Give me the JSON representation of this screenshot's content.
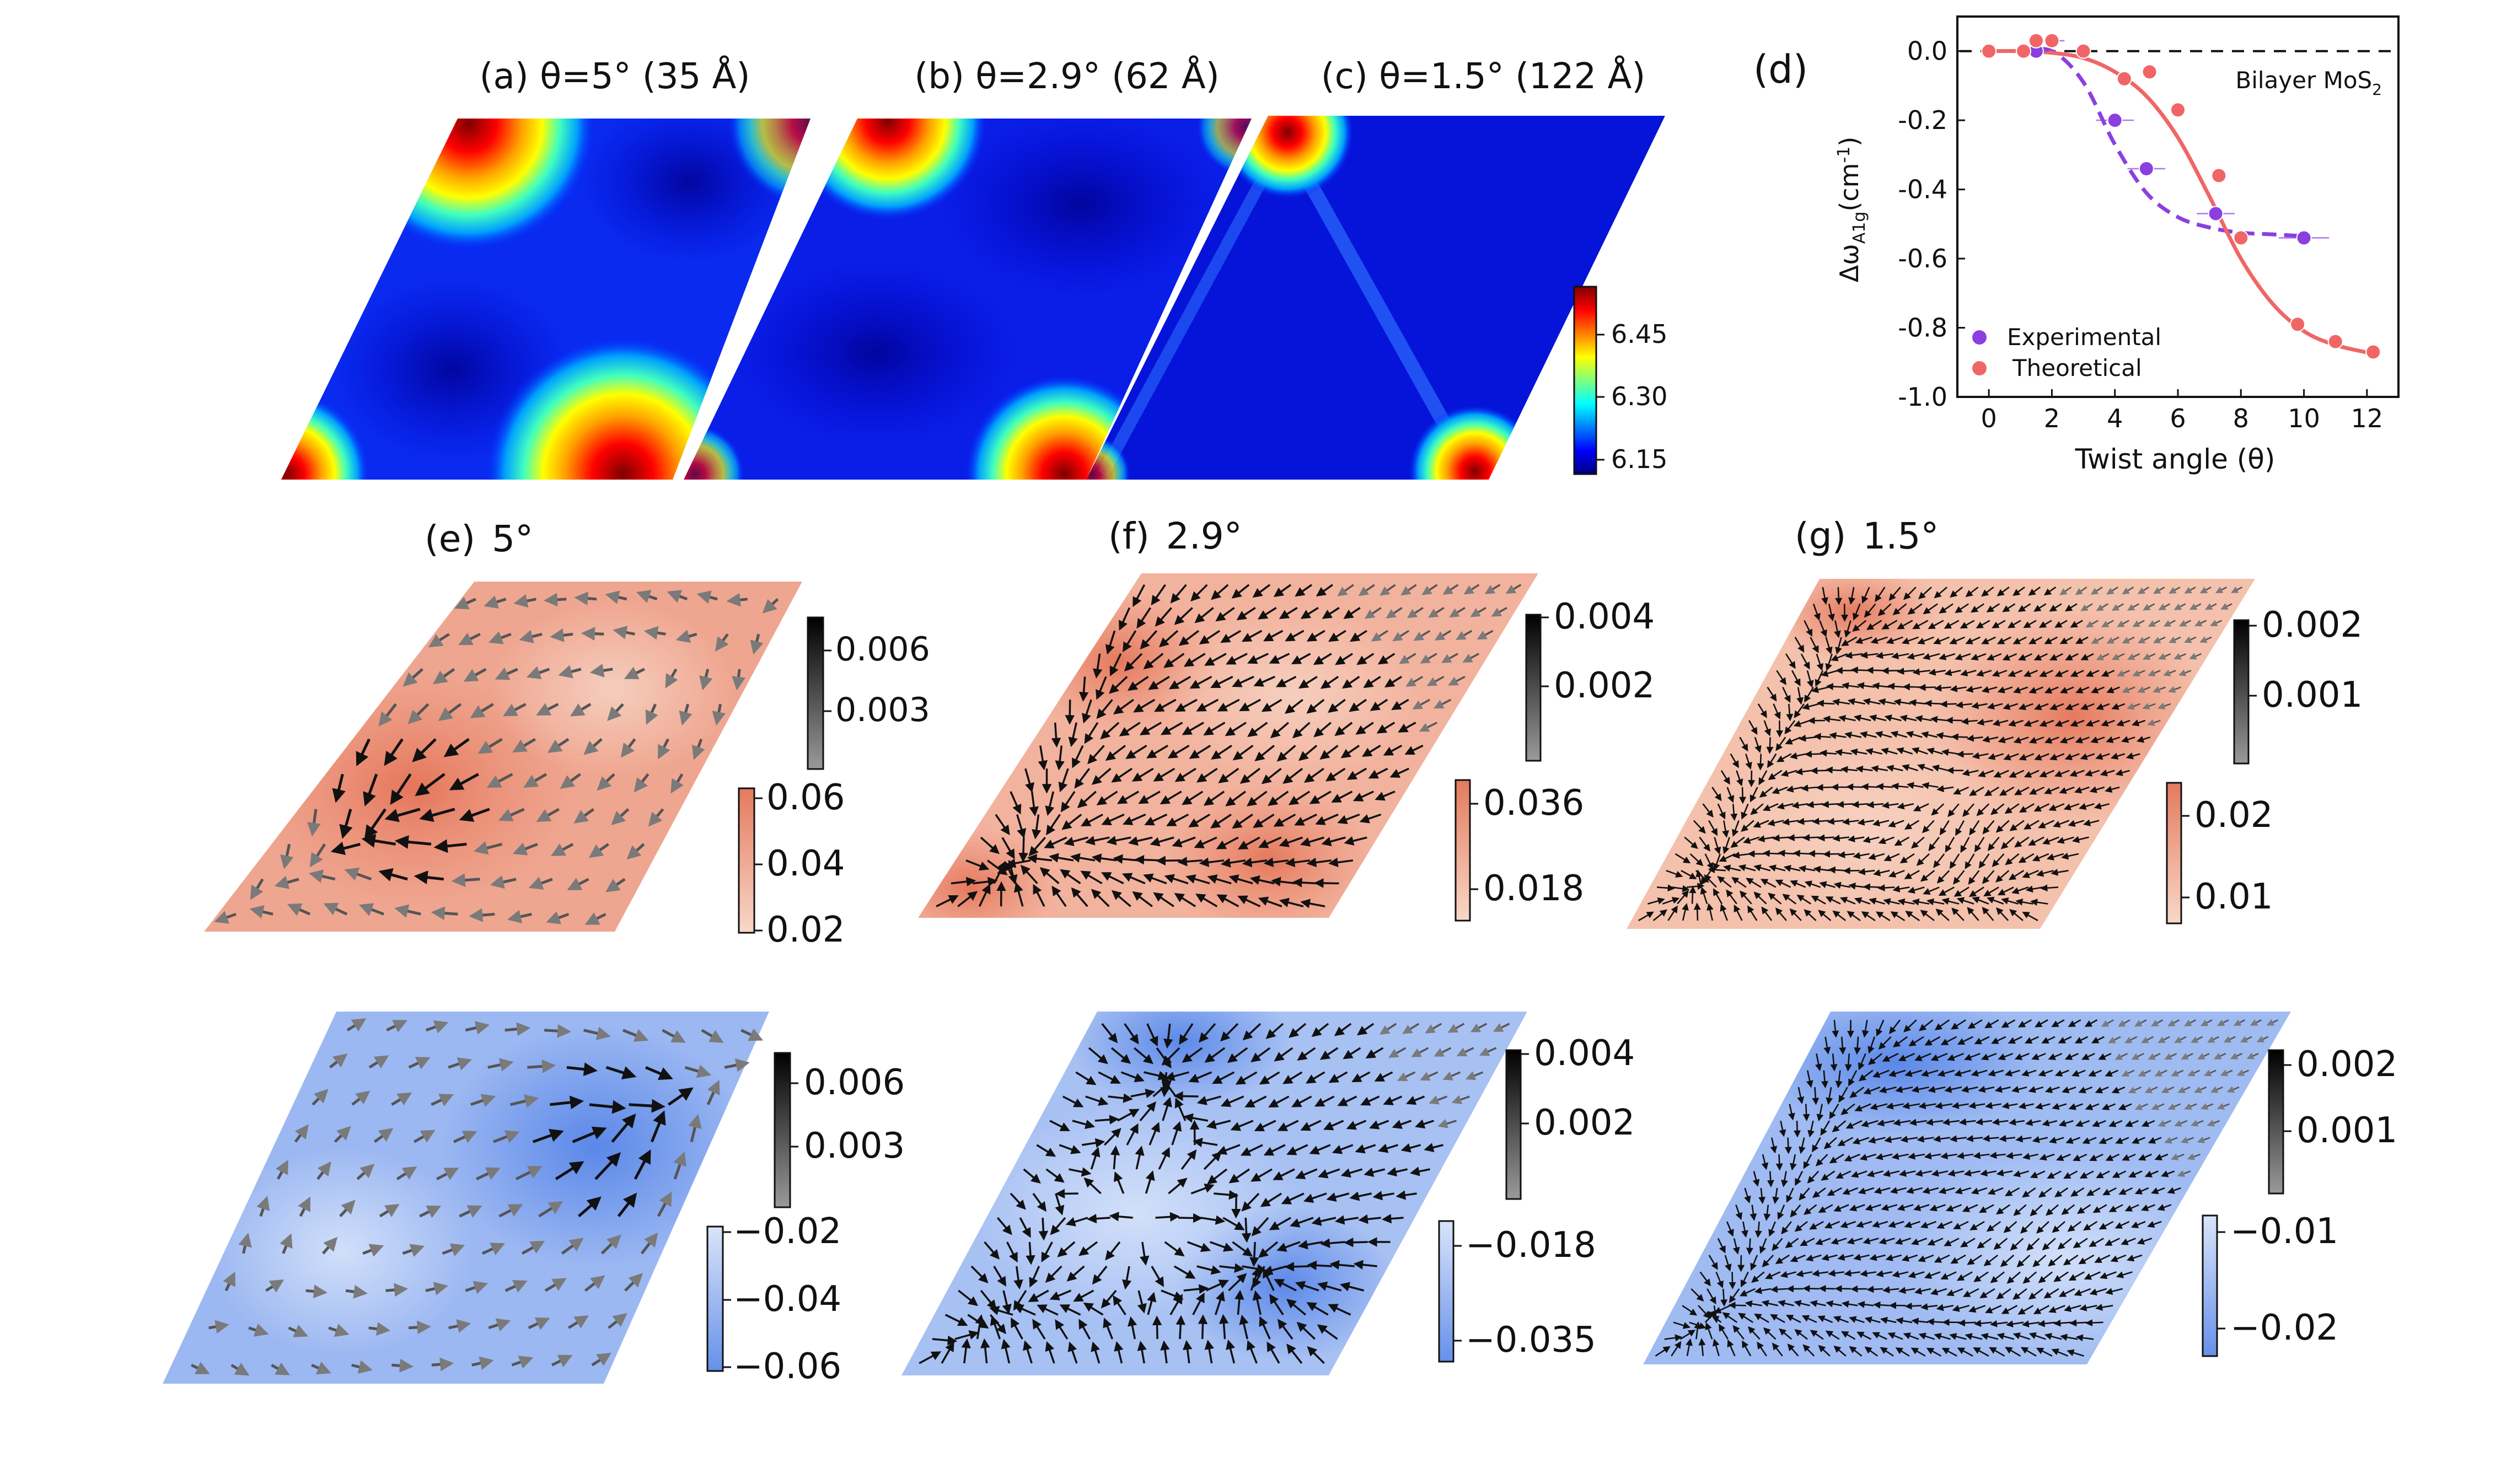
{
  "colors": {
    "jet": [
      "#00007f",
      "#0000ff",
      "#007fff",
      "#00ffff",
      "#7fff7f",
      "#ffff00",
      "#ff7f00",
      "#ff0000",
      "#7f0000"
    ],
    "exp": "#8b3fe0",
    "theo": "#f06666",
    "peach_dark": "#e9836a",
    "peach_light": "#f7c9b7",
    "blue_dark": "#6b95ec",
    "blue_light": "#c8d9f7",
    "arrow_dark": "#111111",
    "arrow_light": "#8c8c8c"
  },
  "maps": [
    {
      "label": "(a) θ=5° (35 Å)"
    },
    {
      "label": "(b) θ=2.9° (62 Å)"
    },
    {
      "label": "(c) θ=1.5° (122 Å)"
    }
  ],
  "map_colorbar": {
    "ticks": [
      "6.45",
      "6.30",
      "6.15"
    ]
  },
  "chart_data": {
    "type": "scatter",
    "panel_label": "(d)",
    "title": "",
    "xlabel": "Twist angle (θ)",
    "ylabel_main": "Δω",
    "ylabel_sub": "A1g",
    "ylabel_unit_open": "(cm",
    "ylabel_unit_sup": "-1",
    "ylabel_unit_close": ")",
    "xlim": [
      -1,
      13
    ],
    "ylim": [
      -1.0,
      0.1
    ],
    "xticks": [
      0,
      2,
      4,
      6,
      8,
      10,
      12
    ],
    "xtick_labels": [
      "0",
      "2",
      "4",
      "6",
      "8",
      "10",
      "12"
    ],
    "yticks": [
      0.0,
      -0.2,
      -0.4,
      -0.6,
      -0.8,
      -1.0
    ],
    "ytick_labels": [
      "0.0",
      "-0.2",
      "-0.4",
      "-0.6",
      "-0.8",
      "-1.0"
    ],
    "reference_line": {
      "y": 0.0,
      "label_main": "Bilayer MoS",
      "label_sub": "2"
    },
    "legend": [
      "Experimental",
      "Theoretical"
    ],
    "series": [
      {
        "name": "Experimental",
        "x": [
          1.5,
          2.0,
          4.0,
          5.0,
          7.2,
          10.0
        ],
        "y": [
          0.0,
          0.03,
          -0.2,
          -0.34,
          -0.47,
          -0.54
        ],
        "xerr": [
          0.4,
          0.4,
          0.6,
          0.6,
          0.6,
          0.8
        ]
      },
      {
        "name": "Theoretical",
        "x": [
          0.0,
          1.1,
          1.5,
          2.0,
          3.0,
          4.3,
          5.1,
          6.0,
          7.3,
          8.0,
          9.8,
          11.0,
          12.2
        ],
        "y": [
          0.0,
          0.0,
          0.03,
          0.03,
          0.0,
          -0.08,
          -0.06,
          -0.17,
          -0.36,
          -0.54,
          -0.79,
          -0.84,
          -0.87
        ]
      }
    ],
    "fits": [
      {
        "name": "Experimental",
        "dashed": true,
        "x": [
          1,
          2,
          3,
          4,
          5,
          6,
          7,
          8,
          9,
          10
        ],
        "y": [
          0.0,
          0.0,
          -0.09,
          -0.27,
          -0.41,
          -0.48,
          -0.51,
          -0.525,
          -0.53,
          -0.535
        ]
      },
      {
        "name": "Theoretical",
        "dashed": false,
        "x": [
          0,
          1,
          2,
          3,
          4,
          5,
          6,
          7,
          8,
          9,
          10,
          11,
          12.2
        ],
        "y": [
          0.0,
          0.0,
          -0.005,
          -0.02,
          -0.06,
          -0.13,
          -0.25,
          -0.42,
          -0.6,
          -0.73,
          -0.81,
          -0.85,
          -0.875
        ]
      }
    ]
  },
  "vector_panels": [
    {
      "label": "(e)",
      "angle": "5°"
    },
    {
      "label": "(f)",
      "angle": "2.9°"
    },
    {
      "label": "(g)",
      "angle": "1.5°"
    }
  ],
  "vector_colorbars": {
    "row1_arrows": [
      [
        "0.006",
        "0.003"
      ],
      [
        "0.004",
        "0.002"
      ],
      [
        "0.002",
        "0.001"
      ]
    ],
    "row1_fields": [
      [
        "0.06",
        "0.04",
        "0.02"
      ],
      [
        "0.036",
        "0.018"
      ],
      [
        "0.02",
        "0.01"
      ]
    ],
    "row2_arrows": [
      [
        "0.006",
        "0.003"
      ],
      [
        "0.004",
        "0.002"
      ],
      [
        "0.002",
        "0.001"
      ]
    ],
    "row2_fields": [
      [
        "−0.02",
        "−0.04",
        "−0.06"
      ],
      [
        "−0.018",
        "−0.035"
      ],
      [
        "−0.01",
        "−0.02"
      ]
    ]
  }
}
